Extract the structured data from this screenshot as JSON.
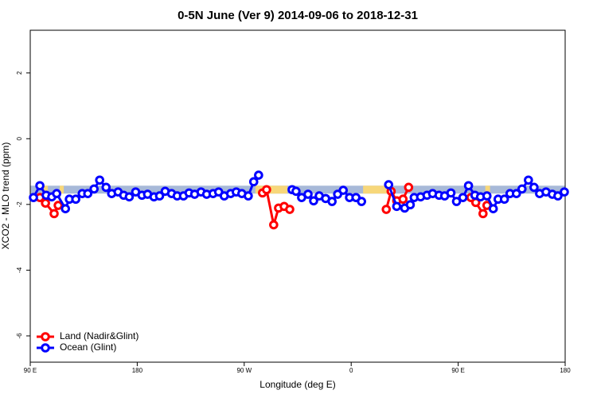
{
  "chart_data": {
    "type": "line",
    "title": "0-5N June (Ver 9)   2014-09-06 to 2018-12-31",
    "xlabel": "Longitude (deg E)",
    "ylabel": "XCO2 - MLO trend (ppm)",
    "xlim": [
      90,
      540
    ],
    "ylim": [
      -6.8,
      3.3
    ],
    "xticks": [
      {
        "value": 90,
        "label": "90 E"
      },
      180,
      {
        "value": 270,
        "label": "90 W"
      },
      {
        "value": 360,
        "label": "0"
      },
      {
        "value": 450,
        "label": "90 E"
      },
      {
        "value": 540,
        "label": "180"
      }
    ],
    "yticks": [
      -6,
      -4,
      -2,
      0,
      2
    ],
    "legend": "bottom-left",
    "bands": {
      "ylim": [
        -1.67,
        -1.43
      ],
      "color": "#a7b9d8",
      "segments": [
        {
          "color": "#f7d77a",
          "x": [
            101.4,
            104.8
          ]
        },
        {
          "color": "#f7d77a",
          "x": [
            114.8,
            118.2
          ]
        },
        {
          "color": "#f7d77a",
          "x": [
            279.4,
            306.3
          ]
        },
        {
          "color": "#f7d77a",
          "x": [
            370,
            390
          ]
        },
        {
          "color": "#f7d77a",
          "x": [
            472.8,
            476.8
          ]
        }
      ]
    },
    "series": [
      {
        "name": "Land (Nadir&Glint)",
        "color": "#ff0000",
        "x": [
          98.1,
          102.8,
          110.1,
          113.5,
          200,
          285.4,
          288.8,
          294.8,
          298.9,
          303.6,
          308.3,
          350,
          389.5,
          393.6,
          398.3,
          403.6,
          408.3,
          430,
          460.7,
          464.8,
          470.9,
          474.2
        ],
        "values": [
          -1.79,
          -1.96,
          -2.28,
          -2.03,
          null,
          -1.65,
          -1.55,
          -2.62,
          -2.11,
          -2.06,
          -2.15,
          null,
          -2.15,
          -1.6,
          -1.89,
          -1.84,
          -1.48,
          null,
          -1.79,
          -1.94,
          -2.28,
          -2.03
        ]
      },
      {
        "name": "Ocean (Glint)",
        "color": "#0000ff",
        "x": [
          92.7,
          98.1,
          103.4,
          108.1,
          112.2,
          119.6,
          122.9,
          128.3,
          133.7,
          138.4,
          143.7,
          148.4,
          153.8,
          158.5,
          163.9,
          168.6,
          173.3,
          178.7,
          184.0,
          188.7,
          194.1,
          198.8,
          203.5,
          208.9,
          213.6,
          218.9,
          223.6,
          228.3,
          233.7,
          238.4,
          243.8,
          248.5,
          253.2,
          258.6,
          263.3,
          268.0,
          273.4,
          278.0,
          282.1,
          300,
          310.3,
          313.6,
          318.3,
          323.7,
          328.4,
          333.1,
          338.5,
          343.9,
          348.6,
          353.3,
          358.6,
          364.0,
          368.7,
          380,
          391.5,
          398.3,
          405.0,
          409.7,
          413.0,
          418.4,
          423.8,
          428.5,
          433.9,
          438.6,
          443.9,
          448.6,
          454.0,
          458.7,
          464.1,
          468.8,
          474.2,
          479.5,
          483.6,
          488.9,
          493.6,
          499.0,
          503.7,
          509.1,
          513.8,
          518.5,
          523.9,
          529.2,
          533.9,
          539.3
        ],
        "values": [
          -1.79,
          -1.43,
          -1.72,
          -1.77,
          -1.67,
          -2.13,
          -1.84,
          -1.84,
          -1.67,
          -1.67,
          -1.53,
          -1.26,
          -1.48,
          -1.67,
          -1.62,
          -1.72,
          -1.77,
          -1.62,
          -1.72,
          -1.69,
          -1.77,
          -1.74,
          -1.6,
          -1.67,
          -1.74,
          -1.74,
          -1.65,
          -1.69,
          -1.62,
          -1.69,
          -1.67,
          -1.62,
          -1.74,
          -1.67,
          -1.62,
          -1.67,
          -1.74,
          -1.31,
          -1.11,
          null,
          -1.55,
          -1.6,
          -1.79,
          -1.69,
          -1.89,
          -1.74,
          -1.82,
          -1.91,
          -1.69,
          -1.57,
          -1.79,
          -1.79,
          -1.91,
          null,
          -1.4,
          -2.06,
          -2.11,
          -2.01,
          -1.79,
          -1.77,
          -1.72,
          -1.67,
          -1.72,
          -1.74,
          -1.65,
          -1.91,
          -1.79,
          -1.43,
          -1.72,
          -1.77,
          -1.74,
          -2.13,
          -1.84,
          -1.84,
          -1.67,
          -1.67,
          -1.53,
          -1.26,
          -1.48,
          -1.67,
          -1.62,
          -1.69,
          -1.74,
          -1.62
        ]
      }
    ]
  }
}
